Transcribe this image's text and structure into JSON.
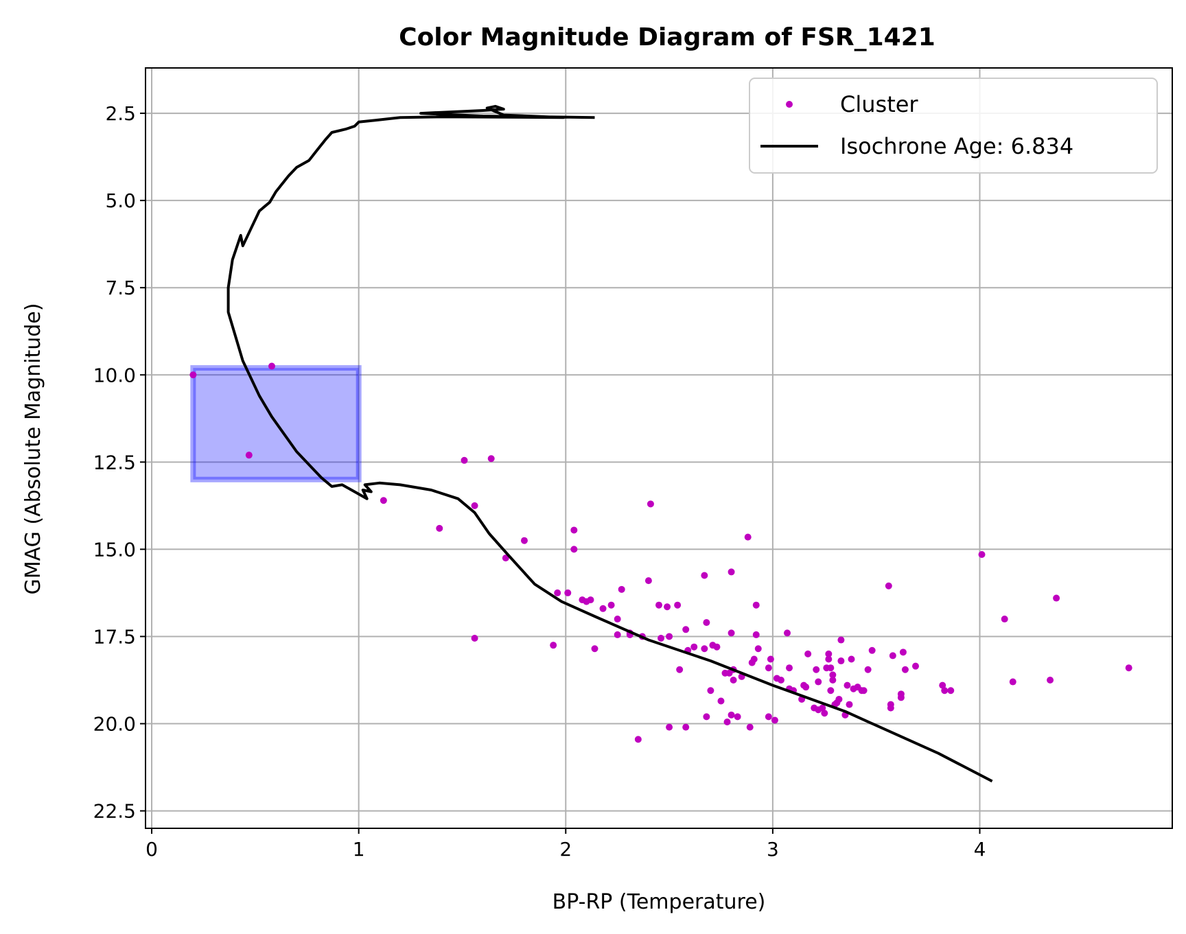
{
  "chart_data": {
    "type": "scatter",
    "title": "Color Magnitude Diagram of FSR_1421",
    "xlabel": "BP-RP (Temperature)",
    "ylabel": "GMAG (Absolute Magnitude)",
    "xlim": [
      -0.03,
      4.93
    ],
    "ylim": [
      23.0,
      1.2
    ],
    "y_inverted": true,
    "grid": true,
    "legend_position": "top-right",
    "x_ticks": [
      0,
      1,
      2,
      3,
      4
    ],
    "y_ticks": [
      2.5,
      5.0,
      7.5,
      10.0,
      12.5,
      15.0,
      17.5,
      20.0,
      22.5
    ],
    "x_tick_labels": [
      "0",
      "1",
      "2",
      "3",
      "4"
    ],
    "y_tick_labels": [
      "2.5",
      "5.0",
      "7.5",
      "10.0",
      "12.5",
      "15.0",
      "17.5",
      "20.0",
      "22.5"
    ],
    "highlight_box": {
      "x": [
        0.2,
        1.0
      ],
      "y": [
        9.8,
        13.0
      ],
      "color": "#0000ff"
    },
    "series": [
      {
        "name": "Cluster",
        "kind": "scatter",
        "color": "#bf00bf",
        "points": [
          [
            0.2,
            10.0
          ],
          [
            0.47,
            12.3
          ],
          [
            0.58,
            9.75
          ],
          [
            1.12,
            13.6
          ],
          [
            1.39,
            14.4
          ],
          [
            1.51,
            12.45
          ],
          [
            1.56,
            13.75
          ],
          [
            1.64,
            12.4
          ],
          [
            1.56,
            17.55
          ],
          [
            1.71,
            15.25
          ],
          [
            1.8,
            14.75
          ],
          [
            1.94,
            17.75
          ],
          [
            1.96,
            16.25
          ],
          [
            2.01,
            16.25
          ],
          [
            2.04,
            14.45
          ],
          [
            2.04,
            15.0
          ],
          [
            2.08,
            16.45
          ],
          [
            2.1,
            16.5
          ],
          [
            2.12,
            16.45
          ],
          [
            2.14,
            17.85
          ],
          [
            2.18,
            16.7
          ],
          [
            2.22,
            16.6
          ],
          [
            2.25,
            17.0
          ],
          [
            2.25,
            17.45
          ],
          [
            2.27,
            16.15
          ],
          [
            2.31,
            17.4
          ],
          [
            2.31,
            17.45
          ],
          [
            2.35,
            20.45
          ],
          [
            2.37,
            17.5
          ],
          [
            2.4,
            15.9
          ],
          [
            2.41,
            13.7
          ],
          [
            2.45,
            16.6
          ],
          [
            2.46,
            17.55
          ],
          [
            2.49,
            16.65
          ],
          [
            2.5,
            20.1
          ],
          [
            2.5,
            17.5
          ],
          [
            2.54,
            16.6
          ],
          [
            2.55,
            18.45
          ],
          [
            2.58,
            17.3
          ],
          [
            2.58,
            20.1
          ],
          [
            2.59,
            17.9
          ],
          [
            2.62,
            17.8
          ],
          [
            2.67,
            15.75
          ],
          [
            2.67,
            17.85
          ],
          [
            2.68,
            17.1
          ],
          [
            2.68,
            19.8
          ],
          [
            2.7,
            19.05
          ],
          [
            2.71,
            17.75
          ],
          [
            2.73,
            17.8
          ],
          [
            2.75,
            19.35
          ],
          [
            2.77,
            18.55
          ],
          [
            2.78,
            19.95
          ],
          [
            2.79,
            18.55
          ],
          [
            2.8,
            15.65
          ],
          [
            2.8,
            17.4
          ],
          [
            2.8,
            19.75
          ],
          [
            2.81,
            18.75
          ],
          [
            2.81,
            18.45
          ],
          [
            2.83,
            19.8
          ],
          [
            2.85,
            18.65
          ],
          [
            2.88,
            14.65
          ],
          [
            2.89,
            20.1
          ],
          [
            2.9,
            18.25
          ],
          [
            2.91,
            18.15
          ],
          [
            2.92,
            16.6
          ],
          [
            2.92,
            17.45
          ],
          [
            2.93,
            17.85
          ],
          [
            2.98,
            18.4
          ],
          [
            2.98,
            19.8
          ],
          [
            2.99,
            18.15
          ],
          [
            3.01,
            19.9
          ],
          [
            3.02,
            18.7
          ],
          [
            3.04,
            18.75
          ],
          [
            3.07,
            17.4
          ],
          [
            3.08,
            18.4
          ],
          [
            3.08,
            19.0
          ],
          [
            3.1,
            19.05
          ],
          [
            3.14,
            19.3
          ],
          [
            3.15,
            18.9
          ],
          [
            3.16,
            18.95
          ],
          [
            3.17,
            18.0
          ],
          [
            3.2,
            19.55
          ],
          [
            3.21,
            18.45
          ],
          [
            3.22,
            19.6
          ],
          [
            3.22,
            18.8
          ],
          [
            3.24,
            19.55
          ],
          [
            3.25,
            19.7
          ],
          [
            3.26,
            18.4
          ],
          [
            3.27,
            18.0
          ],
          [
            3.27,
            18.15
          ],
          [
            3.28,
            18.4
          ],
          [
            3.28,
            19.05
          ],
          [
            3.29,
            18.6
          ],
          [
            3.29,
            18.75
          ],
          [
            3.3,
            19.45
          ],
          [
            3.31,
            19.4
          ],
          [
            3.32,
            19.3
          ],
          [
            3.33,
            18.2
          ],
          [
            3.33,
            17.6
          ],
          [
            3.35,
            19.75
          ],
          [
            3.36,
            18.9
          ],
          [
            3.37,
            19.45
          ],
          [
            3.38,
            18.15
          ],
          [
            3.39,
            19.0
          ],
          [
            3.41,
            18.95
          ],
          [
            3.43,
            19.05
          ],
          [
            3.44,
            19.05
          ],
          [
            3.46,
            18.45
          ],
          [
            3.48,
            17.9
          ],
          [
            3.56,
            16.05
          ],
          [
            3.57,
            19.45
          ],
          [
            3.57,
            19.55
          ],
          [
            3.58,
            18.05
          ],
          [
            3.62,
            19.25
          ],
          [
            3.62,
            19.15
          ],
          [
            3.63,
            17.95
          ],
          [
            3.64,
            18.45
          ],
          [
            3.69,
            18.35
          ],
          [
            3.82,
            18.9
          ],
          [
            3.83,
            19.05
          ],
          [
            3.86,
            19.05
          ],
          [
            4.01,
            15.15
          ],
          [
            4.12,
            17.0
          ],
          [
            4.16,
            18.8
          ],
          [
            4.34,
            18.75
          ],
          [
            4.37,
            16.4
          ],
          [
            4.72,
            18.4
          ]
        ]
      },
      {
        "name": "Isochrone Age: 6.834",
        "kind": "line",
        "color": "#000000",
        "points": [
          [
            2.14,
            2.62
          ],
          [
            1.9,
            2.6
          ],
          [
            1.6,
            2.58
          ],
          [
            1.3,
            2.5
          ],
          [
            1.6,
            2.42
          ],
          [
            1.7,
            2.38
          ],
          [
            1.66,
            2.3
          ],
          [
            1.62,
            2.35
          ],
          [
            1.7,
            2.55
          ],
          [
            1.99,
            2.62
          ],
          [
            1.4,
            2.6
          ],
          [
            1.2,
            2.62
          ],
          [
            1.08,
            2.7
          ],
          [
            1.0,
            2.75
          ],
          [
            0.98,
            2.87
          ],
          [
            0.94,
            2.95
          ],
          [
            0.87,
            3.05
          ],
          [
            0.84,
            3.25
          ],
          [
            0.8,
            3.55
          ],
          [
            0.76,
            3.85
          ],
          [
            0.7,
            4.05
          ],
          [
            0.66,
            4.3
          ],
          [
            0.6,
            4.75
          ],
          [
            0.57,
            5.05
          ],
          [
            0.52,
            5.3
          ],
          [
            0.48,
            5.8
          ],
          [
            0.44,
            6.3
          ],
          [
            0.43,
            6.0
          ],
          [
            0.39,
            6.7
          ],
          [
            0.37,
            7.5
          ],
          [
            0.37,
            8.2
          ],
          [
            0.4,
            8.8
          ],
          [
            0.44,
            9.6
          ],
          [
            0.52,
            10.6
          ],
          [
            0.58,
            11.2
          ],
          [
            0.7,
            12.2
          ],
          [
            0.82,
            12.95
          ],
          [
            0.87,
            13.2
          ],
          [
            0.92,
            13.15
          ],
          [
            0.98,
            13.35
          ],
          [
            1.04,
            13.55
          ],
          [
            1.02,
            13.3
          ],
          [
            1.06,
            13.35
          ],
          [
            1.03,
            13.15
          ],
          [
            1.1,
            13.1
          ],
          [
            1.2,
            13.15
          ],
          [
            1.35,
            13.3
          ],
          [
            1.48,
            13.55
          ],
          [
            1.56,
            13.95
          ],
          [
            1.63,
            14.55
          ],
          [
            1.72,
            15.15
          ],
          [
            1.85,
            16.0
          ],
          [
            1.98,
            16.5
          ],
          [
            2.15,
            16.95
          ],
          [
            2.4,
            17.6
          ],
          [
            2.7,
            18.2
          ],
          [
            3.0,
            18.9
          ],
          [
            3.35,
            19.65
          ],
          [
            3.5,
            20.05
          ],
          [
            3.8,
            20.85
          ],
          [
            4.06,
            21.65
          ]
        ]
      }
    ]
  }
}
